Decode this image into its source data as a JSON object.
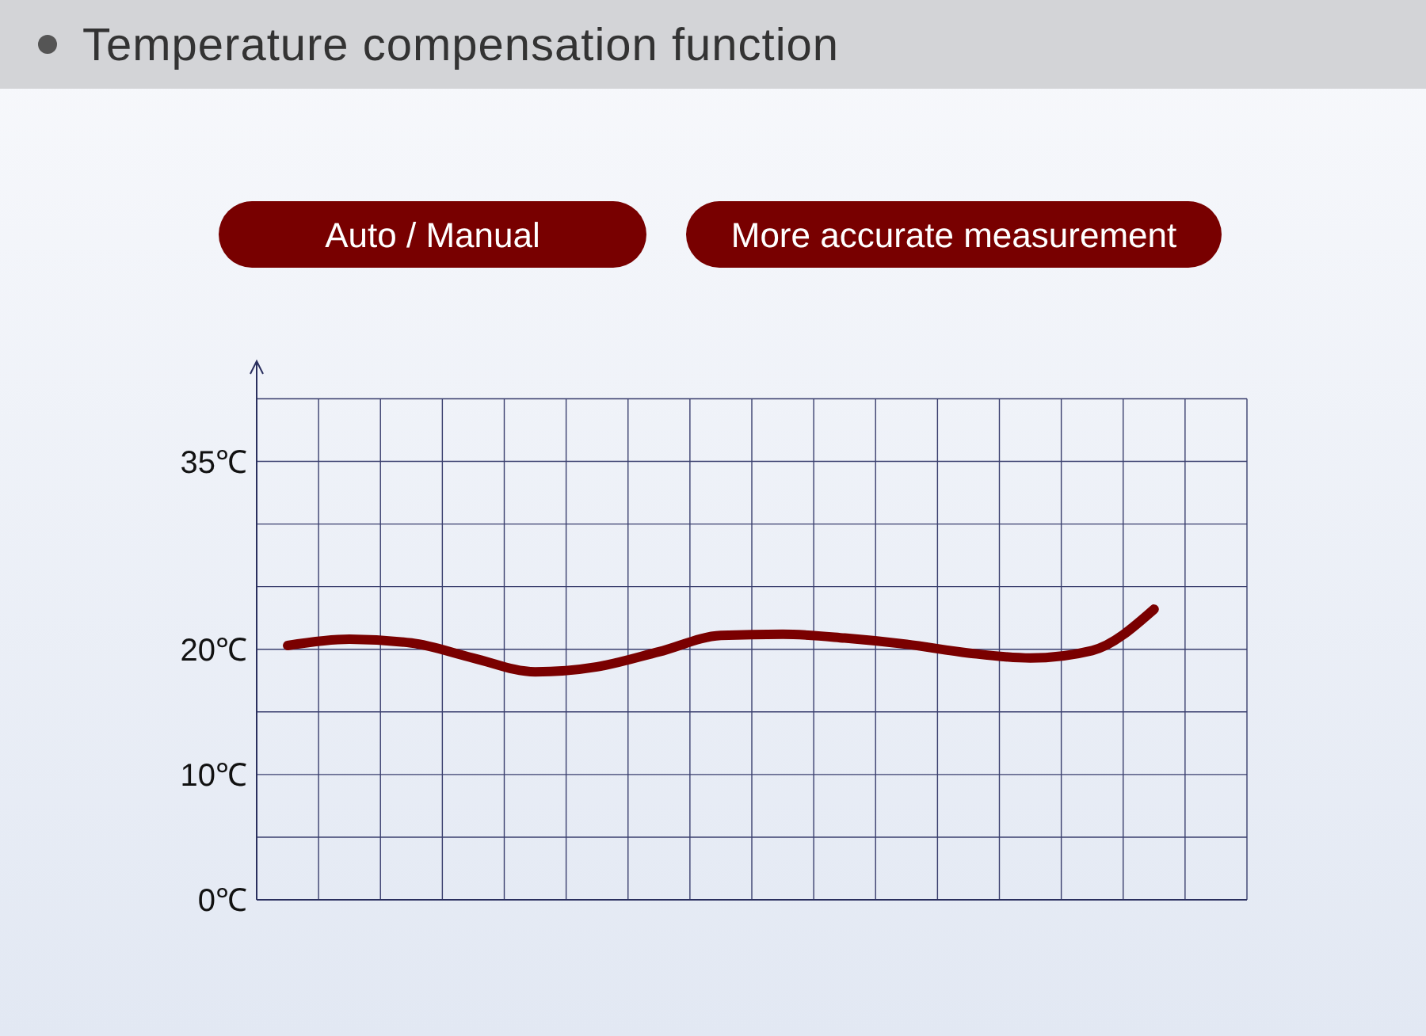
{
  "chart_data": {
    "type": "line",
    "title": "Temperature compensation function",
    "annotations": [
      "Auto / Manual",
      "More accurate measurement"
    ],
    "categories": [
      null,
      null,
      null,
      null,
      null,
      null,
      null,
      null,
      null,
      null,
      null,
      null,
      null,
      null,
      null,
      null
    ],
    "series": [
      {
        "color": "#7a0000",
        "values": [
          20.3,
          20.8,
          20.5,
          19.3,
          18.2,
          18.6,
          19.8,
          21.1,
          21.2,
          20.9,
          20.4,
          19.7,
          19.3,
          19.9,
          23.2,
          null
        ]
      }
    ],
    "ylim": [
      0,
      43
    ],
    "yticks": [
      {
        "value": 0,
        "label": "0℃"
      },
      {
        "value": 5,
        "label": null
      },
      {
        "value": 10,
        "label": "10℃"
      },
      {
        "value": 15,
        "label": null
      },
      {
        "value": 20,
        "label": "20℃"
      },
      {
        "value": 25,
        "label": null
      },
      {
        "value": 30,
        "label": null
      },
      {
        "value": 35,
        "label": "35℃"
      },
      {
        "value": 40,
        "label": null
      }
    ],
    "grid": true,
    "tick_labels": "y",
    "line_style": "solid"
  }
}
